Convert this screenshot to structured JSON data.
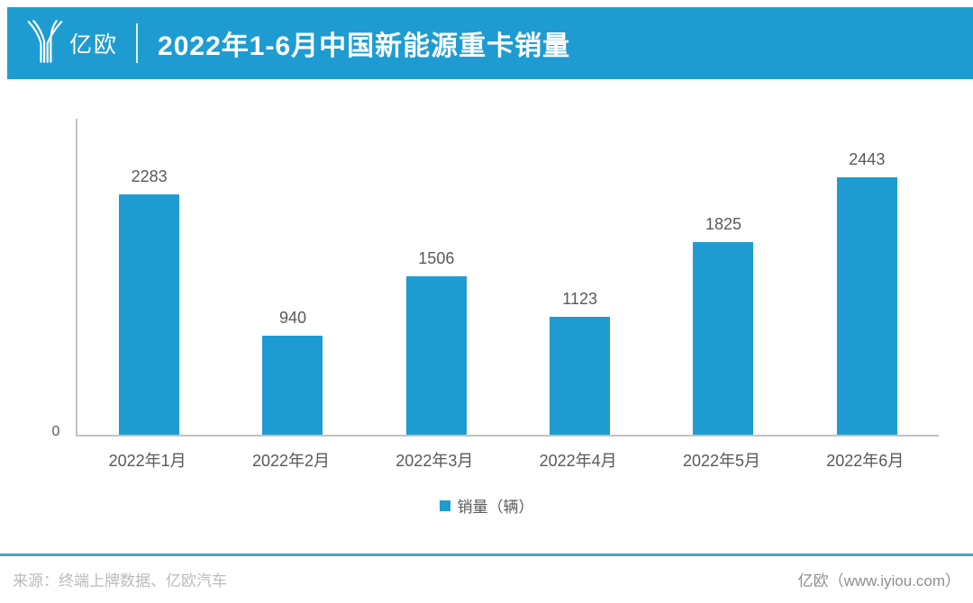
{
  "header": {
    "logo_text": "亿欧",
    "title": "2022年1-6月中国新能源重卡销量"
  },
  "chart_data": {
    "type": "bar",
    "title": "2022年1-6月中国新能源重卡销量",
    "categories": [
      "2022年1月",
      "2022年2月",
      "2022年3月",
      "2022年4月",
      "2022年5月",
      "2022年6月"
    ],
    "values": [
      2283,
      940,
      1506,
      1123,
      1825,
      2443
    ],
    "series_name": "销量（辆）",
    "xlabel": "",
    "ylabel": "",
    "ylim": [
      0,
      3000
    ],
    "y_tick_labels": [
      "0"
    ],
    "grid": false,
    "legend_position": "bottom",
    "bar_color": "#1e9cd2",
    "data_label_color": "#595959"
  },
  "axis": {
    "zero_label": "0"
  },
  "legend": {
    "label": "销量（辆）",
    "swatch_color": "#1e9cd2"
  },
  "footer": {
    "source": "来源：终端上牌数据、亿欧汽车",
    "brand": "亿欧（www.iyiou.com）"
  },
  "colors": {
    "accent": "#1e9cd2",
    "separator": "#4aa3c4",
    "axis_line": "#c2c2c2"
  }
}
